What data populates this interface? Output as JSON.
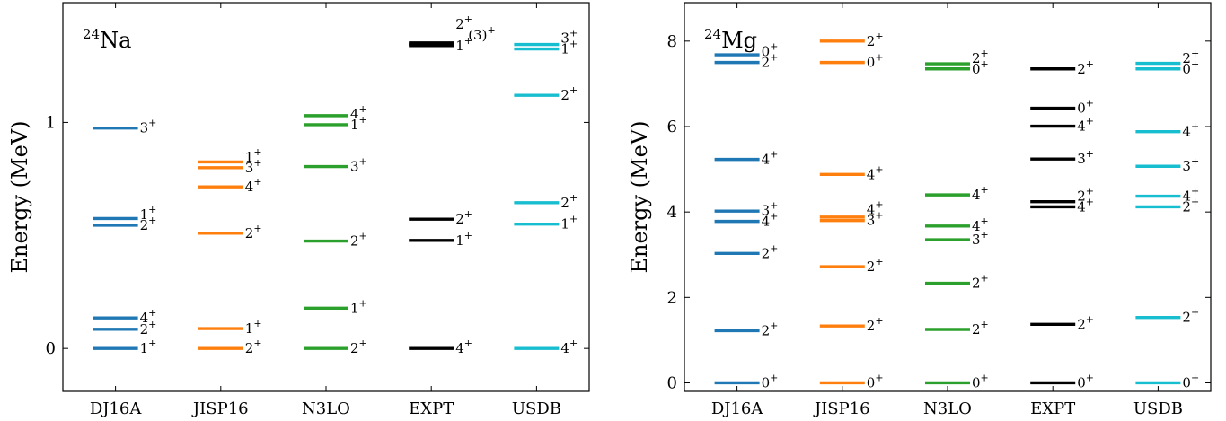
{
  "chart_data": [
    {
      "type": "level-scheme",
      "title": "24Na",
      "title_mass": "24",
      "title_elem": "Na",
      "ylabel": "Energy (MeV)",
      "ylim": [
        -0.19,
        1.53
      ],
      "yticks": [
        0,
        1
      ],
      "categories": [
        "DJ16A",
        "JISP16",
        "N3LO",
        "EXPT",
        "USDB"
      ],
      "colors": [
        "#1f77b4",
        "#ff7f0e",
        "#2ca02c",
        "#000000",
        "#17becf"
      ],
      "series": [
        {
          "levels": [
            {
              "E": 0.0,
              "label": "1+"
            },
            {
              "E": 0.085,
              "label": "2+"
            },
            {
              "E": 0.135,
              "label": "4+"
            },
            {
              "E": 0.545,
              "label": "2+"
            },
            {
              "E": 0.575,
              "label": "1+"
            },
            {
              "E": 0.975,
              "label": "3+"
            }
          ]
        },
        {
          "levels": [
            {
              "E": 0.0,
              "label": "2+"
            },
            {
              "E": 0.088,
              "label": "1+"
            },
            {
              "E": 0.51,
              "label": "2+"
            },
            {
              "E": 0.715,
              "label": "4+"
            },
            {
              "E": 0.8,
              "label": "3+"
            },
            {
              "E": 0.825,
              "label": "1+"
            }
          ]
        },
        {
          "levels": [
            {
              "E": 0.0,
              "label": "2+"
            },
            {
              "E": 0.178,
              "label": "1+"
            },
            {
              "E": 0.475,
              "label": "2+"
            },
            {
              "E": 0.805,
              "label": "3+"
            },
            {
              "E": 0.99,
              "label": "1+"
            },
            {
              "E": 1.03,
              "label": "4+"
            }
          ]
        },
        {
          "levels": [
            {
              "E": 0.0,
              "label": "4+"
            },
            {
              "E": 0.478,
              "label": "1+"
            },
            {
              "E": 0.572,
              "label": "2+"
            },
            {
              "E": 1.34,
              "label": "1+"
            },
            {
              "E": 1.346,
              "label": "(3)+"
            },
            {
              "E": 1.352,
              "label": "2+"
            }
          ]
        },
        {
          "levels": [
            {
              "E": 0.0,
              "label": "4+"
            },
            {
              "E": 0.55,
              "label": "1+"
            },
            {
              "E": 0.645,
              "label": "2+"
            },
            {
              "E": 1.12,
              "label": "2+"
            },
            {
              "E": 1.325,
              "label": "1+"
            },
            {
              "E": 1.345,
              "label": "3+"
            }
          ]
        }
      ]
    },
    {
      "type": "level-scheme",
      "title": "24Mg",
      "title_mass": "24",
      "title_elem": "Mg",
      "ylabel": "Energy (MeV)",
      "ylim": [
        -0.2,
        8.9
      ],
      "yticks": [
        0,
        2,
        4,
        6,
        8
      ],
      "categories": [
        "DJ16A",
        "JISP16",
        "N3LO",
        "EXPT",
        "USDB"
      ],
      "colors": [
        "#1f77b4",
        "#ff7f0e",
        "#2ca02c",
        "#000000",
        "#17becf"
      ],
      "series": [
        {
          "levels": [
            {
              "E": 0.0,
              "label": "0+"
            },
            {
              "E": 1.22,
              "label": "2+"
            },
            {
              "E": 3.03,
              "label": "2+"
            },
            {
              "E": 3.78,
              "label": "4+"
            },
            {
              "E": 4.02,
              "label": "3+"
            },
            {
              "E": 5.23,
              "label": "4+"
            },
            {
              "E": 7.5,
              "label": "2+"
            },
            {
              "E": 7.68,
              "label": "0+"
            }
          ]
        },
        {
          "levels": [
            {
              "E": 0.0,
              "label": "0+"
            },
            {
              "E": 1.33,
              "label": "2+"
            },
            {
              "E": 2.72,
              "label": "2+"
            },
            {
              "E": 3.8,
              "label": "3+"
            },
            {
              "E": 3.88,
              "label": "4+"
            },
            {
              "E": 4.88,
              "label": "4+"
            },
            {
              "E": 7.5,
              "label": "0+"
            },
            {
              "E": 8.0,
              "label": "2+"
            }
          ]
        },
        {
          "levels": [
            {
              "E": 0.0,
              "label": "0+"
            },
            {
              "E": 1.25,
              "label": "2+"
            },
            {
              "E": 2.33,
              "label": "2+"
            },
            {
              "E": 3.35,
              "label": "3+"
            },
            {
              "E": 3.67,
              "label": "4+"
            },
            {
              "E": 4.4,
              "label": "4+"
            },
            {
              "E": 7.35,
              "label": "0+"
            },
            {
              "E": 7.47,
              "label": "2+"
            }
          ]
        },
        {
          "levels": [
            {
              "E": 0.0,
              "label": "0+"
            },
            {
              "E": 1.37,
              "label": "2+"
            },
            {
              "E": 4.12,
              "label": "4+"
            },
            {
              "E": 4.24,
              "label": "2+"
            },
            {
              "E": 5.24,
              "label": "3+"
            },
            {
              "E": 6.01,
              "label": "4+"
            },
            {
              "E": 6.43,
              "label": "0+"
            },
            {
              "E": 7.35,
              "label": "2+"
            }
          ]
        },
        {
          "levels": [
            {
              "E": 0.0,
              "label": "0+"
            },
            {
              "E": 1.53,
              "label": "2+"
            },
            {
              "E": 4.12,
              "label": "2+"
            },
            {
              "E": 4.37,
              "label": "4+"
            },
            {
              "E": 5.07,
              "label": "3+"
            },
            {
              "E": 5.88,
              "label": "4+"
            },
            {
              "E": 7.35,
              "label": "0+"
            },
            {
              "E": 7.48,
              "label": "2+"
            }
          ]
        }
      ]
    }
  ]
}
